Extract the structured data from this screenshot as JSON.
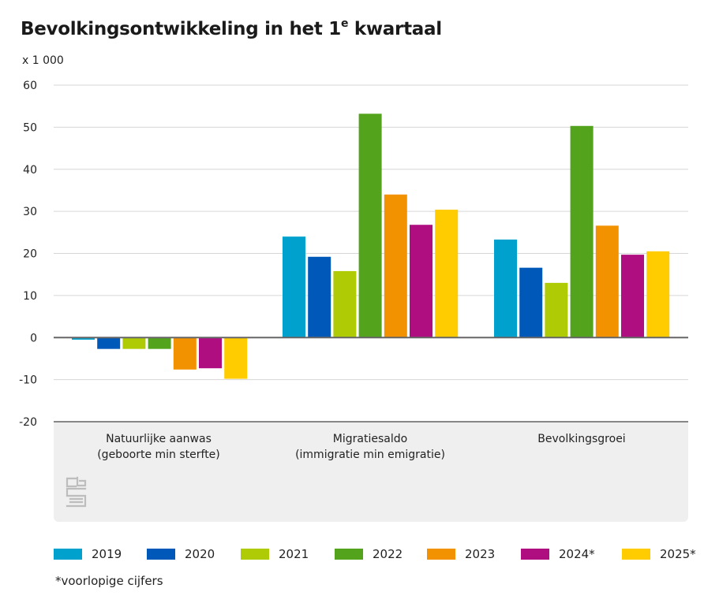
{
  "title": {
    "main": "Bevolkingsontwikkeling in het 1",
    "sup": "e",
    "rest": " kwartaal"
  },
  "unit_label": "x 1 000",
  "footnote": "*voorlopige cijfers",
  "logo": {
    "icon": "cbs-logo-icon",
    "text": "cbs"
  },
  "chart_data": {
    "type": "bar",
    "title": "Bevolkingsontwikkeling in het 1e kwartaal",
    "ylabel": "x 1 000",
    "ylim": [
      -20,
      60
    ],
    "yticks": [
      -20,
      -10,
      0,
      10,
      20,
      30,
      40,
      50,
      60
    ],
    "grid": true,
    "legend_position": "bottom",
    "categories": [
      {
        "line1": "Natuurlijke aanwas",
        "line2": "(geboorte min sterfte)"
      },
      {
        "line1": "Migratiesaldo",
        "line2": "(immigratie min emigratie)"
      },
      {
        "line1": "Bevolkingsgroei",
        "line2": ""
      }
    ],
    "series": [
      {
        "name": "2019",
        "color": "#00A1CD",
        "values": [
          -0.5,
          24.0,
          23.3
        ]
      },
      {
        "name": "2020",
        "color": "#0058B8",
        "values": [
          -2.7,
          19.2,
          16.6
        ]
      },
      {
        "name": "2021",
        "color": "#AFCB05",
        "values": [
          -2.7,
          15.8,
          13.0
        ]
      },
      {
        "name": "2022",
        "color": "#53A31D",
        "values": [
          -2.7,
          53.2,
          50.3
        ]
      },
      {
        "name": "2023",
        "color": "#F39200",
        "values": [
          -7.6,
          34.0,
          26.6
        ]
      },
      {
        "name": "2024*",
        "color": "#AF0E80",
        "values": [
          -7.3,
          26.8,
          19.7
        ]
      },
      {
        "name": "2025*",
        "color": "#FFCC00",
        "values": [
          -9.8,
          30.4,
          20.5
        ]
      }
    ]
  }
}
